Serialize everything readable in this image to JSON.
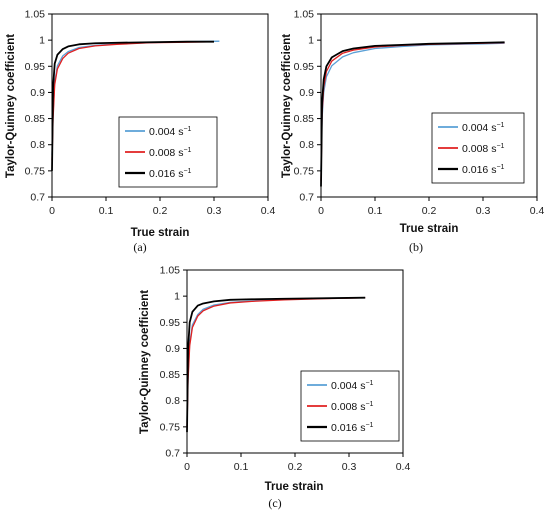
{
  "colors": {
    "s0": "#5aa0d6",
    "s1": "#e02020",
    "s2": "#000000"
  },
  "chart_data": [
    {
      "type": "line",
      "caption": "(a)",
      "xlabel": "True strain",
      "ylabel": "Taylor-Quinney coefficient",
      "xlim": [
        0,
        0.4
      ],
      "ylim": [
        0.7,
        1.05
      ],
      "xticks": [
        0,
        0.1,
        0.2,
        0.3,
        0.4
      ],
      "xtick_labels": [
        "0",
        "0.1",
        "0.2",
        "0.3",
        "0.4"
      ],
      "yticks": [
        0.7,
        0.75,
        0.8,
        0.85,
        0.9,
        0.95,
        1,
        1.05
      ],
      "ytick_labels": [
        "0.7",
        "0.75",
        "0.8",
        "0.85",
        "0.9",
        "0.95",
        "1",
        "1.05"
      ],
      "legend_position": "lower-right",
      "grid": false,
      "series": [
        {
          "name": "0.004 s",
          "name_sup": "−1",
          "color": "#5aa0d6",
          "width": 1.3,
          "x": [
            0,
            0.002,
            0.005,
            0.01,
            0.02,
            0.03,
            0.05,
            0.08,
            0.12,
            0.18,
            0.25,
            0.31
          ],
          "y": [
            0.78,
            0.86,
            0.92,
            0.951,
            0.97,
            0.978,
            0.986,
            0.99,
            0.993,
            0.995,
            0.997,
            0.998
          ]
        },
        {
          "name": "0.008 s",
          "name_sup": "−1",
          "color": "#e02020",
          "width": 1.3,
          "x": [
            0,
            0.002,
            0.005,
            0.01,
            0.02,
            0.03,
            0.05,
            0.08,
            0.12,
            0.18,
            0.25,
            0.3
          ],
          "y": [
            0.77,
            0.85,
            0.915,
            0.945,
            0.965,
            0.975,
            0.984,
            0.989,
            0.992,
            0.995,
            0.996,
            0.997
          ]
        },
        {
          "name": "0.016 s",
          "name_sup": "−1",
          "color": "#000000",
          "width": 1.8,
          "x": [
            0,
            0.002,
            0.005,
            0.01,
            0.02,
            0.03,
            0.05,
            0.08,
            0.12,
            0.18,
            0.25,
            0.3
          ],
          "y": [
            0.75,
            0.91,
            0.955,
            0.972,
            0.983,
            0.988,
            0.992,
            0.994,
            0.995,
            0.996,
            0.997,
            0.997
          ]
        }
      ]
    },
    {
      "type": "line",
      "caption": "(b)",
      "xlabel": "True strain",
      "ylabel": "Taylor-Quinney coefficient",
      "xlim": [
        0,
        0.4
      ],
      "ylim": [
        0.7,
        1.05
      ],
      "xticks": [
        0,
        0.1,
        0.2,
        0.3,
        0.4
      ],
      "xtick_labels": [
        "0",
        "0.1",
        "0.2",
        "0.3",
        "0.4"
      ],
      "yticks": [
        0.7,
        0.75,
        0.8,
        0.85,
        0.9,
        0.95,
        1,
        1.05
      ],
      "ytick_labels": [
        "0.7",
        "0.75",
        "0.8",
        "0.85",
        "0.9",
        "0.95",
        "1",
        "1.05"
      ],
      "legend_position": "lower-right",
      "grid": false,
      "series": [
        {
          "name": "0.004 s",
          "name_sup": "−1",
          "color": "#5aa0d6",
          "width": 1.3,
          "x": [
            0,
            0.002,
            0.005,
            0.01,
            0.02,
            0.04,
            0.06,
            0.1,
            0.15,
            0.2,
            0.3,
            0.34
          ],
          "y": [
            0.75,
            0.85,
            0.9,
            0.93,
            0.951,
            0.968,
            0.976,
            0.984,
            0.988,
            0.991,
            0.993,
            0.994
          ]
        },
        {
          "name": "0.008 s",
          "name_sup": "−1",
          "color": "#e02020",
          "width": 1.3,
          "x": [
            0,
            0.002,
            0.005,
            0.01,
            0.02,
            0.04,
            0.06,
            0.1,
            0.15,
            0.2,
            0.3,
            0.34
          ],
          "y": [
            0.73,
            0.86,
            0.91,
            0.94,
            0.96,
            0.975,
            0.981,
            0.987,
            0.99,
            0.992,
            0.994,
            0.995
          ]
        },
        {
          "name": "0.016 s",
          "name_sup": "−1",
          "color": "#000000",
          "width": 1.8,
          "x": [
            0,
            0.002,
            0.005,
            0.01,
            0.02,
            0.04,
            0.06,
            0.1,
            0.15,
            0.2,
            0.3,
            0.34
          ],
          "y": [
            0.72,
            0.88,
            0.925,
            0.95,
            0.967,
            0.979,
            0.984,
            0.989,
            0.991,
            0.993,
            0.995,
            0.996
          ]
        }
      ]
    },
    {
      "type": "line",
      "caption": "(c)",
      "xlabel": "True strain",
      "ylabel": "Taylor-Quinney coefficient",
      "xlim": [
        0,
        0.4
      ],
      "ylim": [
        0.7,
        1.05
      ],
      "xticks": [
        0,
        0.1,
        0.2,
        0.3,
        0.4
      ],
      "xtick_labels": [
        "0",
        "0.1",
        "0.2",
        "0.3",
        "0.4"
      ],
      "yticks": [
        0.7,
        0.75,
        0.8,
        0.85,
        0.9,
        0.95,
        1,
        1.05
      ],
      "ytick_labels": [
        "0.7",
        "0.75",
        "0.8",
        "0.85",
        "0.9",
        "0.95",
        "1",
        "1.05"
      ],
      "legend_position": "lower-right",
      "grid": false,
      "series": [
        {
          "name": "0.004 s",
          "name_sup": "−1",
          "color": "#5aa0d6",
          "width": 1.3,
          "x": [
            0,
            0.002,
            0.005,
            0.01,
            0.02,
            0.03,
            0.05,
            0.08,
            0.12,
            0.18,
            0.25,
            0.33
          ],
          "y": [
            0.76,
            0.85,
            0.91,
            0.945,
            0.965,
            0.975,
            0.983,
            0.988,
            0.991,
            0.994,
            0.996,
            0.997
          ]
        },
        {
          "name": "0.008 s",
          "name_sup": "−1",
          "color": "#e02020",
          "width": 1.3,
          "x": [
            0,
            0.002,
            0.005,
            0.01,
            0.02,
            0.03,
            0.05,
            0.08,
            0.12,
            0.18,
            0.25,
            0.33
          ],
          "y": [
            0.75,
            0.84,
            0.905,
            0.94,
            0.962,
            0.972,
            0.981,
            0.987,
            0.99,
            0.993,
            0.995,
            0.997
          ]
        },
        {
          "name": "0.016 s",
          "name_sup": "−1",
          "color": "#000000",
          "width": 1.8,
          "x": [
            0,
            0.002,
            0.005,
            0.01,
            0.02,
            0.03,
            0.05,
            0.08,
            0.12,
            0.18,
            0.25,
            0.33
          ],
          "y": [
            0.74,
            0.9,
            0.95,
            0.97,
            0.982,
            0.986,
            0.99,
            0.993,
            0.994,
            0.995,
            0.996,
            0.997
          ]
        }
      ]
    }
  ]
}
